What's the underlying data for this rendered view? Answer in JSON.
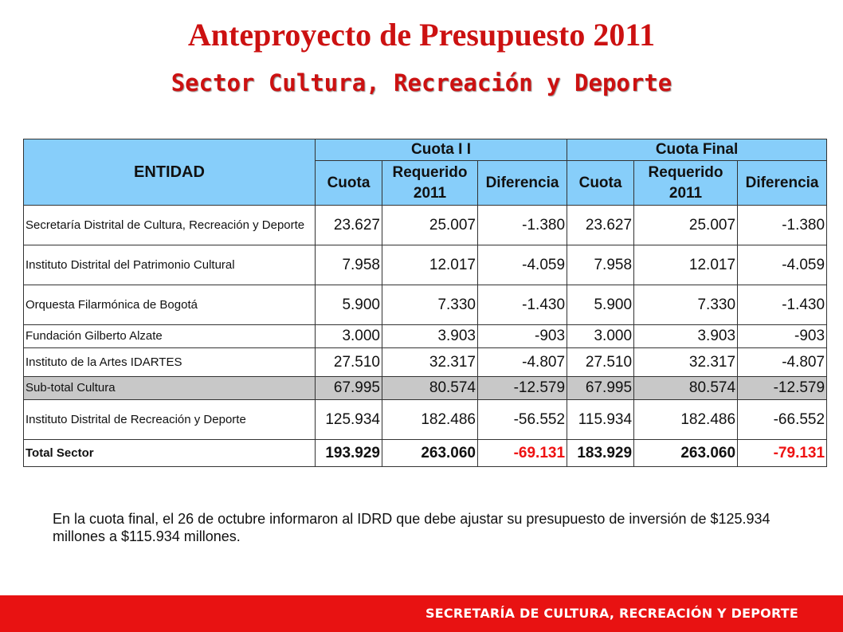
{
  "title": "Anteproyecto  de Presupuesto 2011",
  "subtitle": "Sector Cultura, Recreación y Deporte",
  "table": {
    "entity_header": "ENTIDAD",
    "group1": "Cuota I I",
    "group2": "Cuota Final",
    "col_cuota": "Cuota",
    "col_requerido": "Requerido 2011",
    "col_diferencia": "Diferencia",
    "rows": [
      {
        "name": "Secretaría Distrital de Cultura, Recreación y Deporte",
        "c1": "23.627",
        "r1": "25.007",
        "d1": "-1.380",
        "c2": "23.627",
        "r2": "25.007",
        "d2": "-1.380"
      },
      {
        "name": "Instituto Distrital del Patrimonio Cultural",
        "c1": "7.958",
        "r1": "12.017",
        "d1": "-4.059",
        "c2": "7.958",
        "r2": "12.017",
        "d2": "-4.059"
      },
      {
        "name": "Orquesta Filarmónica de Bogotá",
        "c1": "5.900",
        "r1": "7.330",
        "d1": "-1.430",
        "c2": "5.900",
        "r2": "7.330",
        "d2": "-1.430"
      },
      {
        "name": "Fundación Gilberto Alzate",
        "c1": "3.000",
        "r1": "3.903",
        "d1": "-903",
        "c2": "3.000",
        "r2": "3.903",
        "d2": "-903"
      },
      {
        "name": "Instituto de la Artes IDARTES",
        "c1": "27.510",
        "r1": "32.317",
        "d1": "-4.807",
        "c2": "27.510",
        "r2": "32.317",
        "d2": "-4.807"
      },
      {
        "name": "Sub-total Cultura",
        "c1": "67.995",
        "r1": "80.574",
        "d1": "-12.579",
        "c2": "67.995",
        "r2": "80.574",
        "d2": "-12.579"
      },
      {
        "name": "Instituto Distrital de Recreación y Deporte",
        "c1": "125.934",
        "r1": "182.486",
        "d1": "-56.552",
        "c2": "115.934",
        "r2": "182.486",
        "d2": "-66.552"
      },
      {
        "name": "Total Sector",
        "c1": "193.929",
        "r1": "263.060",
        "d1": "-69.131",
        "c2": "183.929",
        "r2": "263.060",
        "d2": "-79.131"
      }
    ]
  },
  "note": "En la cuota final, el 26 de octubre informaron al IDRD que debe ajustar su presupuesto de inversión  de $125.934 millones a $115.934 millones.",
  "footer": "SECRETARÍA DE CULTURA, RECREACIÓN Y DEPORTE",
  "colors": {
    "title": "#cc1111",
    "header_bg": "#87cefa",
    "subtotal_bg": "#c8c8c8",
    "negative_total": "#ee1111",
    "footer_bg": "#e81212"
  }
}
